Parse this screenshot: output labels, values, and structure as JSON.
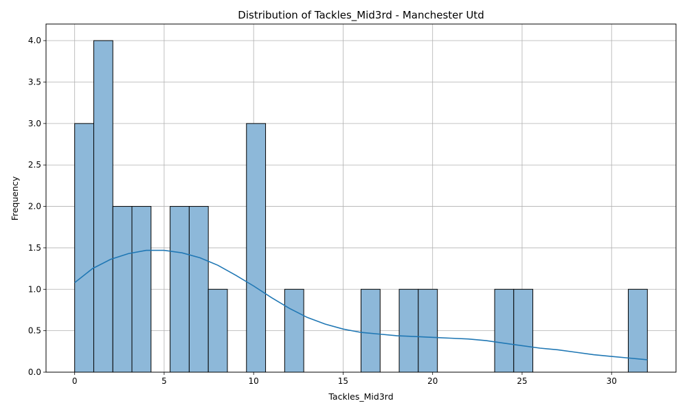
{
  "chart_data": {
    "type": "histogram",
    "title": "Distribution of Tackles_Mid3rd - Manchester Utd",
    "xlabel": "Tackles_Mid3rd",
    "ylabel": "Frequency",
    "xlim": [
      -1.6,
      33.6
    ],
    "ylim": [
      0,
      4.2
    ],
    "grid": true,
    "bins": [
      {
        "x0": 0.0,
        "x1": 1.067,
        "count": 3
      },
      {
        "x0": 1.067,
        "x1": 2.133,
        "count": 4
      },
      {
        "x0": 2.133,
        "x1": 3.2,
        "count": 2
      },
      {
        "x0": 3.2,
        "x1": 4.267,
        "count": 2
      },
      {
        "x0": 4.267,
        "x1": 5.333,
        "count": 0
      },
      {
        "x0": 5.333,
        "x1": 6.4,
        "count": 2
      },
      {
        "x0": 6.4,
        "x1": 7.467,
        "count": 2
      },
      {
        "x0": 7.467,
        "x1": 8.533,
        "count": 1
      },
      {
        "x0": 8.533,
        "x1": 9.6,
        "count": 0
      },
      {
        "x0": 9.6,
        "x1": 10.667,
        "count": 3
      },
      {
        "x0": 10.667,
        "x1": 11.733,
        "count": 0
      },
      {
        "x0": 11.733,
        "x1": 12.8,
        "count": 1
      },
      {
        "x0": 12.8,
        "x1": 13.867,
        "count": 0
      },
      {
        "x0": 13.867,
        "x1": 14.933,
        "count": 0
      },
      {
        "x0": 14.933,
        "x1": 16.0,
        "count": 0
      },
      {
        "x0": 16.0,
        "x1": 17.067,
        "count": 1
      },
      {
        "x0": 17.067,
        "x1": 18.133,
        "count": 0
      },
      {
        "x0": 18.133,
        "x1": 19.2,
        "count": 1
      },
      {
        "x0": 19.2,
        "x1": 20.267,
        "count": 1
      },
      {
        "x0": 20.267,
        "x1": 21.333,
        "count": 0
      },
      {
        "x0": 21.333,
        "x1": 22.4,
        "count": 0
      },
      {
        "x0": 22.4,
        "x1": 23.467,
        "count": 0
      },
      {
        "x0": 23.467,
        "x1": 24.533,
        "count": 1
      },
      {
        "x0": 24.533,
        "x1": 25.6,
        "count": 1
      },
      {
        "x0": 25.6,
        "x1": 26.667,
        "count": 0
      },
      {
        "x0": 26.667,
        "x1": 27.733,
        "count": 0
      },
      {
        "x0": 27.733,
        "x1": 28.8,
        "count": 0
      },
      {
        "x0": 28.8,
        "x1": 29.867,
        "count": 0
      },
      {
        "x0": 29.867,
        "x1": 30.933,
        "count": 0
      },
      {
        "x0": 30.933,
        "x1": 32.0,
        "count": 1
      }
    ],
    "kde": {
      "x": [
        0,
        1,
        2,
        3,
        4,
        5,
        6,
        7,
        8,
        9,
        10,
        11,
        12,
        13,
        14,
        15,
        16,
        17,
        18,
        19,
        20,
        21,
        22,
        23,
        24,
        25,
        26,
        27,
        28,
        29,
        30,
        31,
        32
      ],
      "y": [
        1.08,
        1.25,
        1.36,
        1.43,
        1.47,
        1.47,
        1.44,
        1.38,
        1.29,
        1.17,
        1.04,
        0.9,
        0.77,
        0.66,
        0.58,
        0.52,
        0.48,
        0.46,
        0.44,
        0.43,
        0.42,
        0.41,
        0.4,
        0.38,
        0.35,
        0.32,
        0.29,
        0.27,
        0.24,
        0.21,
        0.19,
        0.17,
        0.15
      ]
    },
    "xticks": [
      0,
      5,
      10,
      15,
      20,
      25,
      30
    ],
    "xtick_labels": [
      "0",
      "5",
      "10",
      "15",
      "20",
      "25",
      "30"
    ],
    "yticks": [
      0,
      0.5,
      1.0,
      1.5,
      2.0,
      2.5,
      3.0,
      3.5,
      4.0
    ],
    "ytick_labels": [
      "0.0",
      "0.5",
      "1.0",
      "1.5",
      "2.0",
      "2.5",
      "3.0",
      "3.5",
      "4.0"
    ],
    "colors": {
      "bar_fill": "#8db8d9",
      "bar_edge": "#000000",
      "kde_line": "#1f77b4",
      "grid": "#b0b0b0"
    }
  }
}
